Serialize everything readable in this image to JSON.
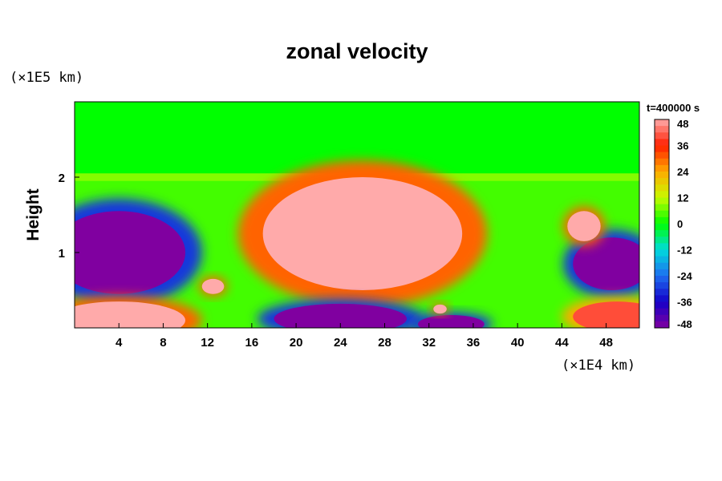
{
  "chart_data": {
    "type": "heatmap",
    "title": "zonal velocity",
    "xlabel": "",
    "ylabel": "Height",
    "x_unit": "(×1E4 km)",
    "y_unit": "(×1E5 km)",
    "xlim": [
      0,
      51
    ],
    "ylim": [
      0,
      3
    ],
    "x_ticks": [
      4,
      8,
      12,
      16,
      20,
      24,
      28,
      32,
      36,
      40,
      44,
      48
    ],
    "y_ticks": [
      1,
      2
    ],
    "time_label": "t=400000 s",
    "colorbar": {
      "min": -48,
      "max": 48,
      "levels": [
        48,
        36,
        24,
        12,
        0,
        -12,
        -24,
        -36,
        -48
      ]
    },
    "regions": [
      {
        "name": "upper-layer",
        "value": 0,
        "x0": 0,
        "x1": 51,
        "y0": 2.05,
        "y1": 3.0
      },
      {
        "name": "transition-band",
        "value": 8,
        "x0": 0,
        "x1": 51,
        "y0": 1.95,
        "y1": 2.05
      },
      {
        "name": "left-negative-core",
        "value": -50,
        "cx": 4,
        "cy": 1.0,
        "rx": 6,
        "ry": 0.55
      },
      {
        "name": "right-negative-core",
        "value": -50,
        "cx": 48.5,
        "cy": 0.85,
        "rx": 3.5,
        "ry": 0.35
      },
      {
        "name": "central-positive-core",
        "value": 50,
        "cx": 26,
        "cy": 1.25,
        "rx": 9,
        "ry": 0.75
      },
      {
        "name": "bottom-left-positive",
        "value": 50,
        "cx": 4,
        "cy": 0.1,
        "rx": 6,
        "ry": 0.25
      },
      {
        "name": "bottom-negative-1",
        "value": -50,
        "cx": 24,
        "cy": 0.12,
        "rx": 6,
        "ry": 0.2
      },
      {
        "name": "bottom-negative-2",
        "value": -50,
        "cx": 34,
        "cy": 0.05,
        "rx": 3,
        "ry": 0.12
      },
      {
        "name": "right-positive-eddy",
        "value": 50,
        "cx": 46,
        "cy": 1.35,
        "rx": 1.5,
        "ry": 0.2
      },
      {
        "name": "small-positive-eddy-1",
        "value": 50,
        "cx": 12.5,
        "cy": 0.55,
        "rx": 1.0,
        "ry": 0.1
      },
      {
        "name": "small-positive-eddy-2",
        "value": 50,
        "cx": 33,
        "cy": 0.25,
        "rx": 0.6,
        "ry": 0.06
      },
      {
        "name": "bottom-right-positive",
        "value": 40,
        "cx": 49,
        "cy": 0.15,
        "rx": 4,
        "ry": 0.2
      }
    ]
  }
}
